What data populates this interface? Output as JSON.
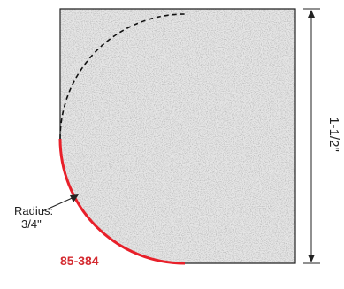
{
  "dimension": {
    "height_label": "1-1/2\""
  },
  "radius": {
    "line1": "Radius:",
    "line2": "3/4\""
  },
  "part_number": "85-384",
  "colors": {
    "profile": "#e8202a",
    "part_number": "#d42a30",
    "outline": "#222222",
    "fill": "#c9c9c9"
  }
}
